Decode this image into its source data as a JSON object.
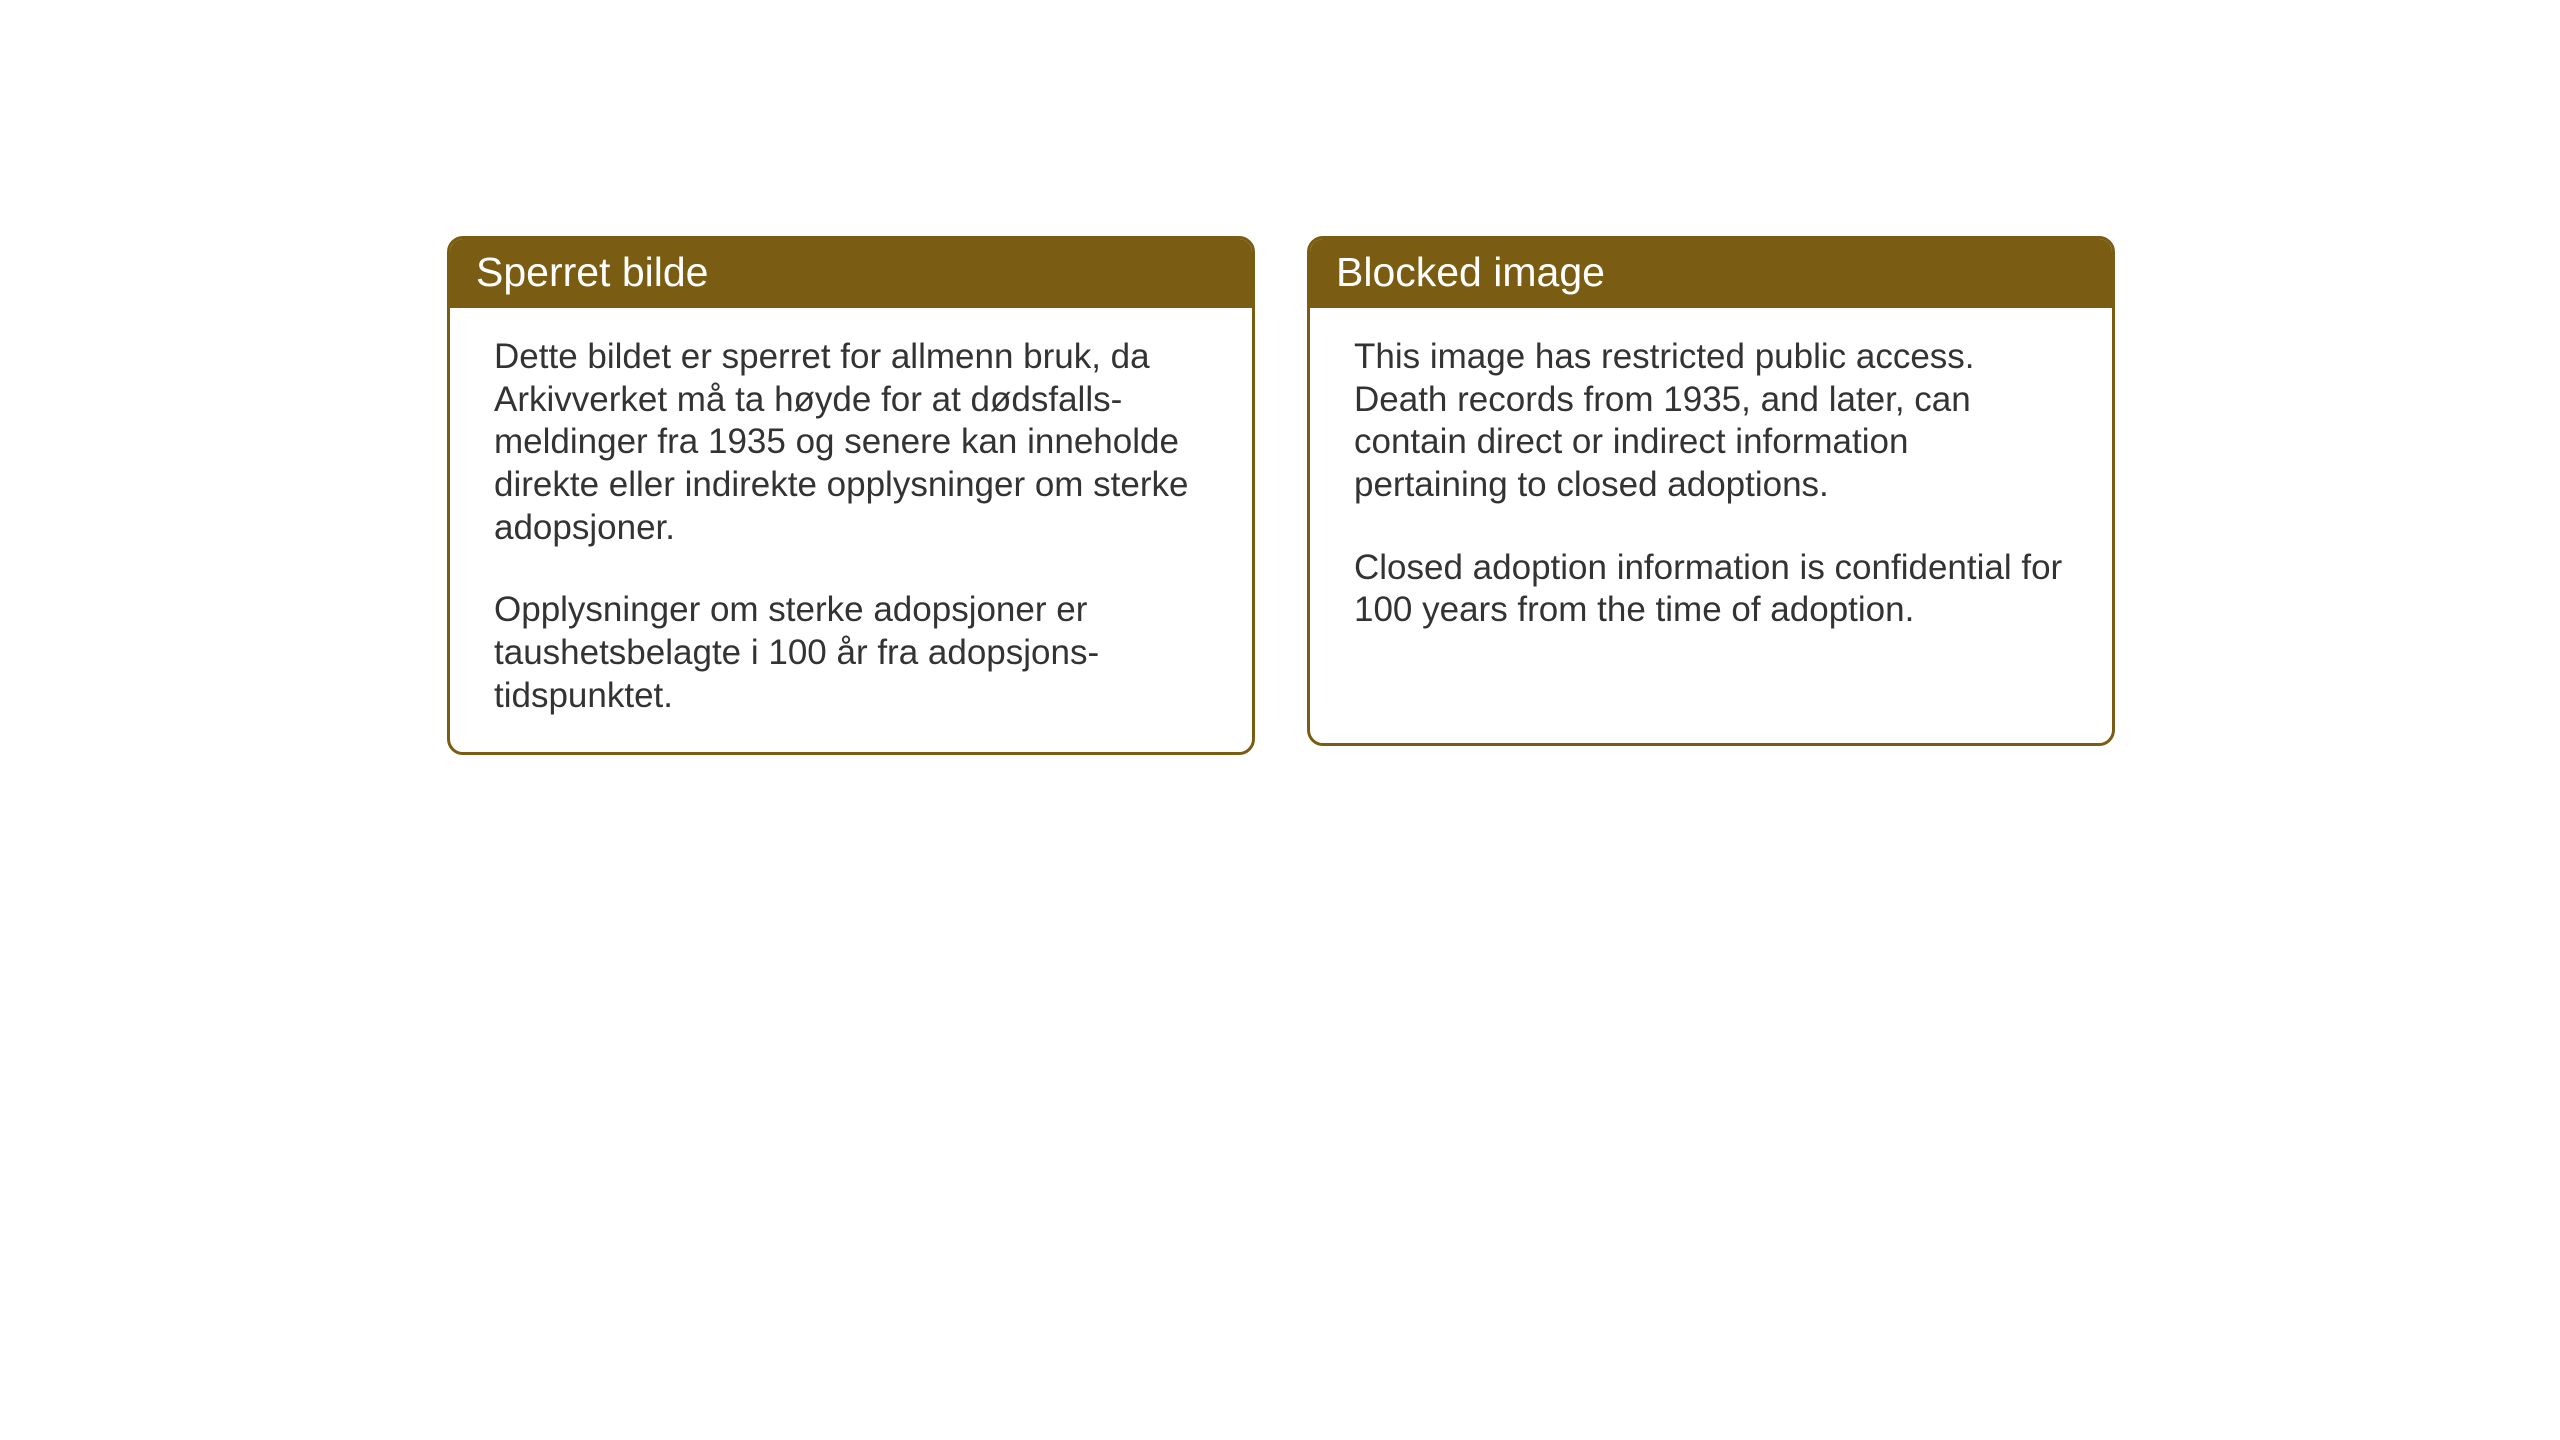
{
  "cards": [
    {
      "title": "Sperret bilde",
      "paragraph1": "Dette bildet er sperret for allmenn bruk, da Arkivverket må ta høyde for at dødsfalls-meldinger fra 1935 og senere kan inneholde direkte eller indirekte opplysninger om sterke adopsjoner.",
      "paragraph2": "Opplysninger om sterke adopsjoner er taushetsbelagte i 100 år fra adopsjons-tidspunktet."
    },
    {
      "title": "Blocked image",
      "paragraph1": "This image has restricted public access. Death records from 1935, and later, can contain direct or indirect information pertaining to closed adoptions.",
      "paragraph2": "Closed adoption information is confidential for 100 years from the time of adoption."
    }
  ],
  "styling": {
    "header_bg_color": "#7a5c13",
    "header_text_color": "#ffffff",
    "border_color": "#7a5c13",
    "body_text_color": "#333333",
    "background_color": "#ffffff",
    "title_fontsize": 41,
    "body_fontsize": 35,
    "border_radius": 16,
    "border_width": 3
  }
}
